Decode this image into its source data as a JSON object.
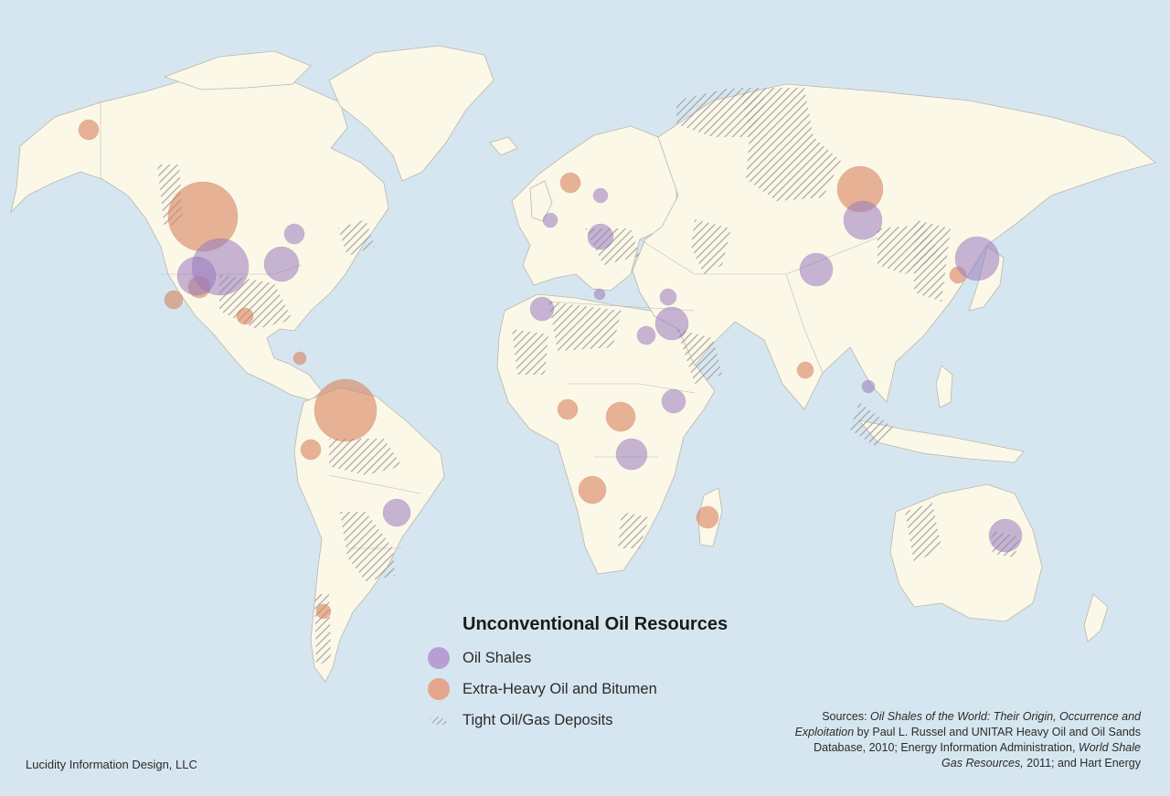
{
  "legend": {
    "title": "Unconventional Oil Resources",
    "items": [
      {
        "label": "Oil Shales",
        "color": "#9a7bbf"
      },
      {
        "label": "Extra-Heavy Oil and Bitumen",
        "color": "#d9835f"
      },
      {
        "label": "Tight Oil/Gas Deposits",
        "color": "#a8a8a8"
      }
    ]
  },
  "credit": "Lucidity Information Design, LLC",
  "sources": {
    "prefix": "Sources: ",
    "book_title": "Oil Shales of the World: Their Origin, Occurrence and Exploitation",
    "line_a": " by Paul L. Russel and UNITAR Heavy Oil and Oil Sands Database, 2010; Energy Information Administration,",
    "report_title": "World Shale Gas Resources,",
    "line_b": " 2011; and Hart Energy"
  },
  "colors": {
    "ocean": "#d6e6f0",
    "land": "#fbf8e8",
    "oil_shales": "#9a7bbf",
    "extra_heavy": "#d9835f"
  }
}
